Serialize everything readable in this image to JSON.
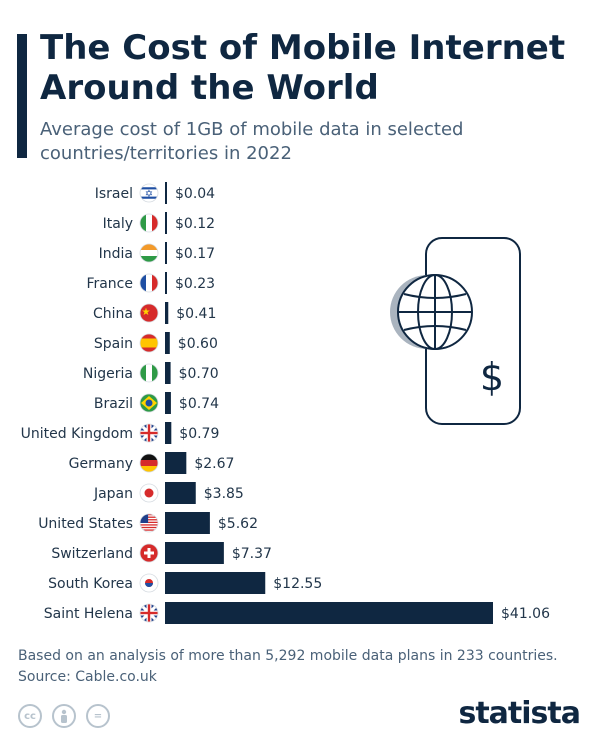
{
  "header": {
    "title": "The Cost of Mobile Internet Around the World",
    "subtitle": "Average cost of 1GB of mobile data in selected countries/territories in 2022"
  },
  "chart_data": {
    "type": "bar",
    "orientation": "horizontal",
    "title": "The Cost of Mobile Internet Around the World",
    "subtitle": "Average cost of 1GB of mobile data in selected countries/territories in 2022",
    "categories": [
      "Israel",
      "Italy",
      "India",
      "France",
      "China",
      "Spain",
      "Nigeria",
      "Brazil",
      "United Kingdom",
      "Germany",
      "Japan",
      "United States",
      "Switzerland",
      "South Korea",
      "Saint Helena"
    ],
    "values": [
      0.04,
      0.12,
      0.17,
      0.23,
      0.41,
      0.6,
      0.7,
      0.74,
      0.79,
      2.67,
      3.85,
      5.62,
      7.37,
      12.55,
      41.06
    ],
    "value_labels": [
      "$0.04",
      "$0.12",
      "$0.17",
      "$0.23",
      "$0.41",
      "$0.60",
      "$0.70",
      "$0.74",
      "$0.79",
      "$2.67",
      "$3.85",
      "$5.62",
      "$7.37",
      "$12.55",
      "$41.06"
    ],
    "flags": [
      "israel-flag",
      "italy-flag",
      "india-flag",
      "france-flag",
      "china-flag",
      "spain-flag",
      "nigeria-flag",
      "brazil-flag",
      "uk-flag",
      "germany-flag",
      "japan-flag",
      "usa-flag",
      "switzerland-flag",
      "south-korea-flag",
      "saint-helena-flag"
    ],
    "xlim": [
      0,
      41.06
    ],
    "bar_color": "#0f2741",
    "grid": false,
    "legend": "none"
  },
  "illustration": {
    "icon": "smartphone-globe-dollar-icon",
    "symbol": "$"
  },
  "footer": {
    "note": "Based on an analysis of more than 5,292 mobile data plans in 233 countries.",
    "source": "Source: Cable.co.uk"
  },
  "license_icons": [
    "cc",
    "by",
    "="
  ],
  "brand": {
    "logo": "statista"
  }
}
